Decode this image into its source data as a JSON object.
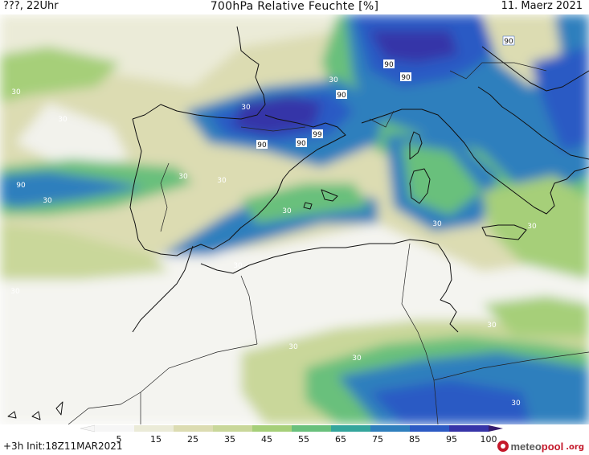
{
  "header": {
    "left": "???, 22Uhr",
    "title": "700hPa Relative Feuchte [%]",
    "date": "11. Maerz 2021"
  },
  "footer": {
    "run": "+3h  Init:18Z11MAR2021",
    "brand_main": "meteo",
    "brand_accent": "pool",
    "brand_tld": ".org"
  },
  "legend": {
    "ticks": [
      "5",
      "15",
      "25",
      "35",
      "45",
      "55",
      "65",
      "75",
      "85",
      "95",
      "100"
    ],
    "colors": [
      "#f6f6f6",
      "#ebebd8",
      "#dcdcb2",
      "#c9d79a",
      "#a6cf79",
      "#69c07c",
      "#34a59c",
      "#2f7fbd",
      "#2c5ac4",
      "#3634a8",
      "#361c6d"
    ]
  },
  "contour_labels": [
    {
      "text": "90",
      "boxed": true
    },
    {
      "text": "90",
      "boxed": true
    },
    {
      "text": "90",
      "boxed": true
    },
    {
      "text": "90",
      "boxed": true
    },
    {
      "text": "90",
      "boxed": true
    },
    {
      "text": "90",
      "boxed": true
    },
    {
      "text": "99",
      "boxed": true
    },
    {
      "text": "90",
      "boxed": true
    },
    {
      "text": "30",
      "boxed": false
    },
    {
      "text": "30",
      "boxed": false
    },
    {
      "text": "30",
      "boxed": false
    },
    {
      "text": "30",
      "boxed": false
    },
    {
      "text": "30",
      "boxed": false
    },
    {
      "text": "30",
      "boxed": false
    },
    {
      "text": "30",
      "boxed": false
    },
    {
      "text": "30",
      "boxed": false
    },
    {
      "text": "30",
      "boxed": false
    },
    {
      "text": "30",
      "boxed": false
    },
    {
      "text": "30",
      "boxed": false
    },
    {
      "text": "30",
      "boxed": false
    },
    {
      "text": "30",
      "boxed": false
    },
    {
      "text": "30",
      "boxed": false
    },
    {
      "text": "30",
      "boxed": false
    },
    {
      "text": "30",
      "boxed": false
    }
  ]
}
